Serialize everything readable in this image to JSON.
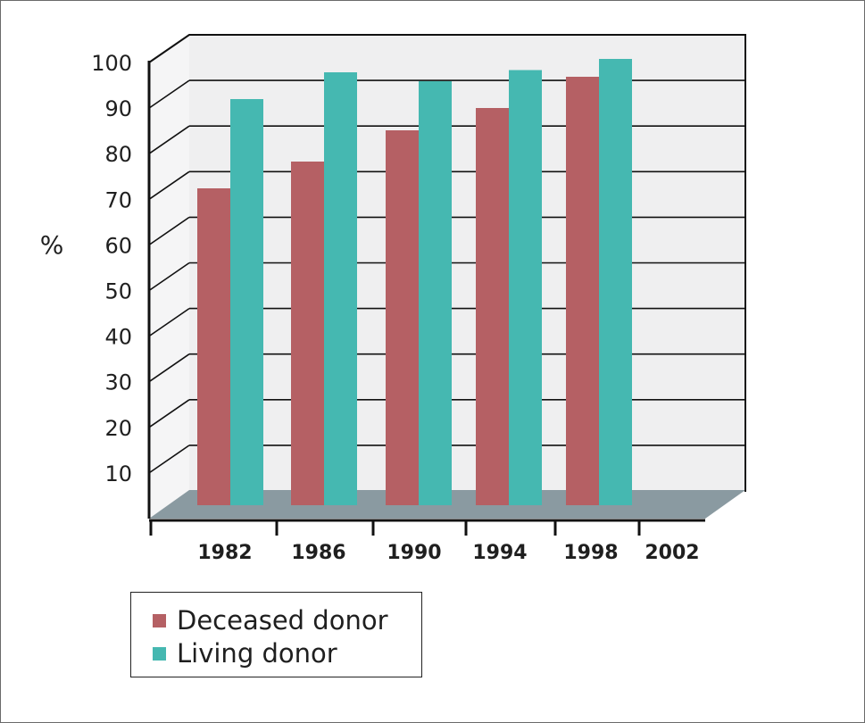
{
  "chart_data": {
    "type": "bar",
    "ylabel": "%",
    "xlabel": "",
    "categories": [
      "1982",
      "1986",
      "1990",
      "1994",
      "1998",
      "2002"
    ],
    "ylim": [
      0,
      100
    ],
    "yticks": [
      "10",
      "20",
      "30",
      "40",
      "50",
      "60",
      "70",
      "80",
      "90",
      "100"
    ],
    "series": [
      {
        "name": "Deceased donor",
        "color": "#b56064",
        "values": [
          71,
          77,
          84,
          89,
          96,
          null
        ]
      },
      {
        "name": "Living donor",
        "color": "#45b8b1",
        "values": [
          91,
          97,
          95,
          97.5,
          100,
          null
        ]
      }
    ],
    "grid": true,
    "legend": "bottom-left",
    "style": "3d"
  }
}
